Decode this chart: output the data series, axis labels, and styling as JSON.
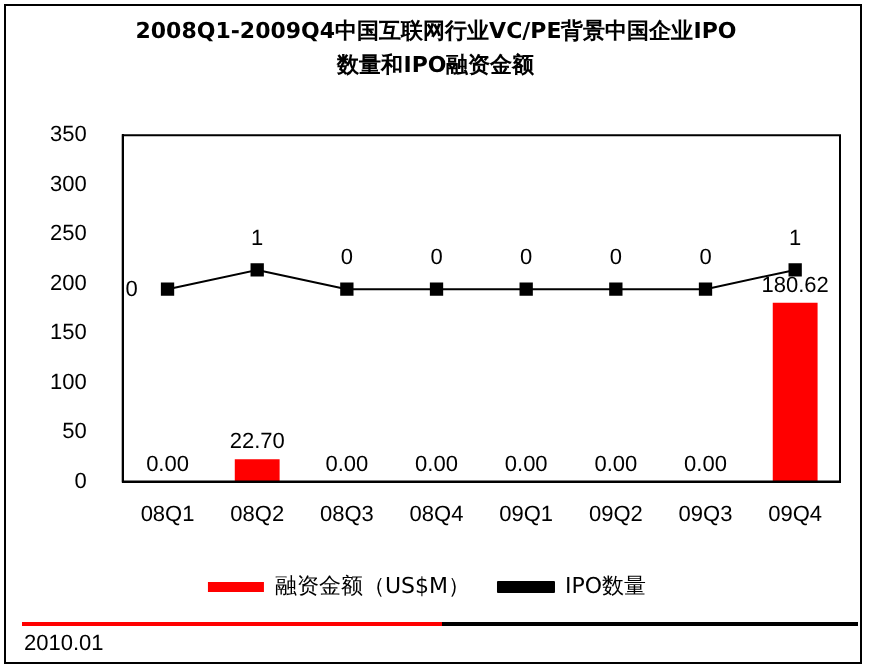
{
  "chart_data": {
    "type": "bar",
    "title": "2008Q1-2009Q4中国互联网行业VC/PE背景中国企业IPO数量和IPO融资金额",
    "categories": [
      "08Q1",
      "08Q2",
      "08Q3",
      "08Q4",
      "09Q1",
      "09Q2",
      "09Q3",
      "09Q4"
    ],
    "series": [
      {
        "name": "融资金额（US$M）",
        "color": "#ff0000",
        "values": [
          0,
          22.7,
          0,
          0,
          0,
          0,
          0,
          180.62
        ],
        "value_labels": [
          "0.00",
          "22.70",
          "0.00",
          "0.00",
          "0.00",
          "0.00",
          "0.00",
          "180.62"
        ]
      },
      {
        "name": "IPO数量",
        "type": "line",
        "axis": "y2",
        "color": "#000000",
        "values": [
          0,
          1,
          0,
          0,
          0,
          0,
          0,
          1
        ],
        "value_labels": [
          "0",
          "1",
          "0",
          "0",
          "0",
          "0",
          "0",
          "1"
        ]
      }
    ],
    "ylim": [
      0,
      350
    ],
    "yticks": [
      0,
      50,
      100,
      150,
      200,
      250,
      300,
      350
    ],
    "grid": false,
    "legend": "bottom",
    "marker": "square",
    "line_style": "solid",
    "annotations": [
      "2010.01"
    ]
  }
}
